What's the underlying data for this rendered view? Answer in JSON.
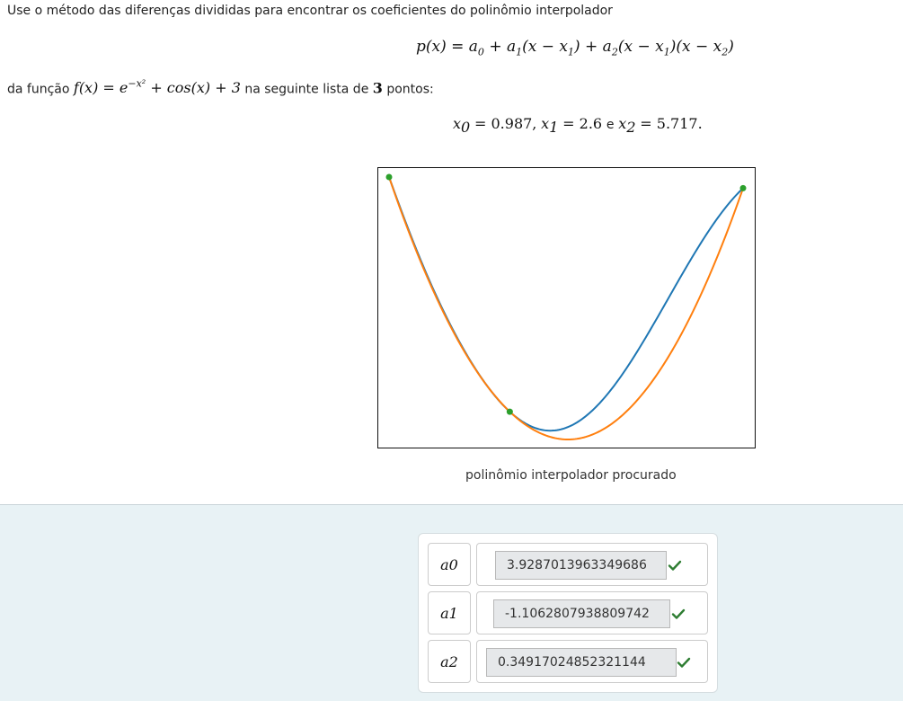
{
  "problem": {
    "intro": "Use o método das diferenças divididas para encontrar os coeficientes do polinômio interpolador",
    "formula": {
      "p": "p(x) = a",
      "sub0": "0",
      "plus_a": "+ a",
      "sub1": "1",
      "x_minus_x": "(x − x",
      "close": ")",
      "plus_a2": "+ a",
      "sub2": "2",
      "x_minus_x1": "(x − x",
      "sub1b": "1",
      "x_minus_x2": ")(x − x",
      "sub2b": "2",
      "close2": ")"
    },
    "function_prefix": "da função",
    "function_expr_a": "f(x) = e",
    "function_exp": "−x²",
    "function_expr_b": "+ cos(x) + 3",
    "function_mid": "na seguinte lista de",
    "num_points": "3",
    "function_suffix": "pontos:",
    "points": {
      "x0_label": "x",
      "x0_sub": "0",
      "x0_val": "= 0.987,",
      "x1_label": "x",
      "x1_sub": "1",
      "x1_val": "= 2.6",
      "and": "e",
      "x2_label": "x",
      "x2_sub": "2",
      "x2_val": "= 5.717."
    }
  },
  "plot": {
    "caption": "polinômio interpolador procurado",
    "colors": {
      "function_curve": "#1f77b4",
      "polynomial_curve": "#ff7f0e",
      "points": "#2ca02c"
    },
    "series": [
      {
        "name": "f(x)"
      },
      {
        "name": "p(x)"
      }
    ],
    "x_range": [
      0.987,
      5.717
    ],
    "nodes_x": [
      0.987,
      2.6,
      5.717
    ]
  },
  "answers": [
    {
      "label": "a",
      "sub": "0",
      "value": "3.9287013963349686",
      "status": "correct"
    },
    {
      "label": "a",
      "sub": "1",
      "value": "-1.1062807938809742",
      "status": "correct"
    },
    {
      "label": "a",
      "sub": "2",
      "value": "0.34917024852321144",
      "status": "correct"
    }
  ]
}
